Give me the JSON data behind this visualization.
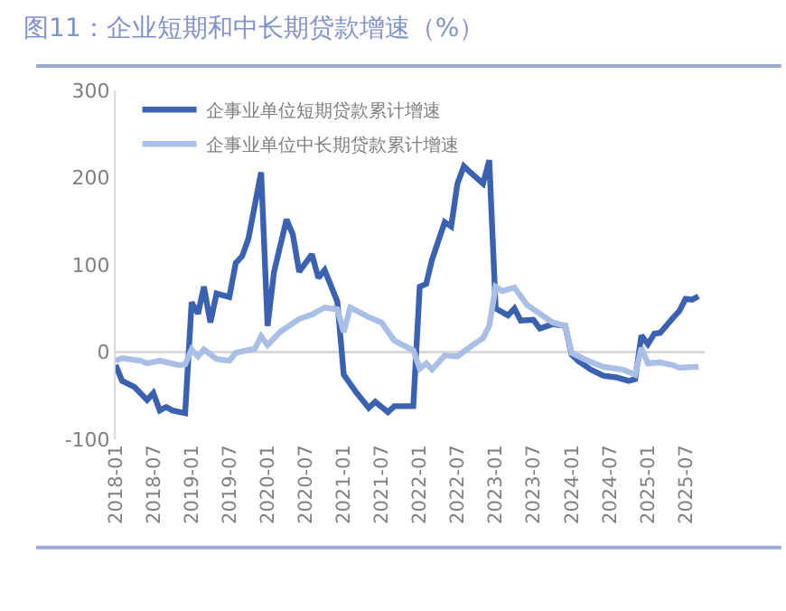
{
  "chart_data": {
    "type": "line",
    "title": "图11：企业短期和中长期贷款增速（%）",
    "ylim": [
      -100,
      300
    ],
    "yticks": [
      -100,
      0,
      100,
      200,
      300
    ],
    "xlim": [
      "2018-01",
      "2025-10"
    ],
    "xticks": [
      "2018-01",
      "2018-07",
      "2019-01",
      "2019-07",
      "2020-01",
      "2020-07",
      "2021-01",
      "2021-07",
      "2022-01",
      "2022-07",
      "2023-01",
      "2023-07",
      "2024-01",
      "2024-07",
      "2025-01",
      "2025-07"
    ],
    "grid": false,
    "ref_lines": [
      {
        "axis": "y",
        "value": 0,
        "color": "#d9d9d9"
      }
    ],
    "legend": "top left",
    "marker": "none",
    "line_style": "solid",
    "series": [
      {
        "name": "企事业单位短期贷款累计增速",
        "color": "#3a62b0",
        "x": [
          "2018-01",
          "2018-02",
          "2018-04",
          "2018-06",
          "2018-07",
          "2018-08",
          "2018-09",
          "2018-10",
          "2018-12",
          "2019-01",
          "2019-02",
          "2019-03",
          "2019-04",
          "2019-05",
          "2019-07",
          "2019-08",
          "2019-09",
          "2019-10",
          "2019-12",
          "2020-01",
          "2020-02",
          "2020-04",
          "2020-05",
          "2020-06",
          "2020-08",
          "2020-09",
          "2020-10",
          "2020-12",
          "2021-01",
          "2021-03",
          "2021-05",
          "2021-06",
          "2021-08",
          "2021-09",
          "2021-12",
          "2022-01",
          "2022-02",
          "2022-03",
          "2022-05",
          "2022-06",
          "2022-07",
          "2022-08",
          "2022-09",
          "2022-11",
          "2022-12",
          "2023-01",
          "2023-03",
          "2023-04",
          "2023-05",
          "2023-07",
          "2023-08",
          "2023-10",
          "2023-12",
          "2024-01",
          "2024-02",
          "2024-04",
          "2024-06",
          "2024-08",
          "2024-10",
          "2024-11",
          "2024-12",
          "2025-01",
          "2025-02",
          "2025-03",
          "2025-05",
          "2025-06",
          "2025-07",
          "2025-08",
          "2025-09"
        ],
        "values": [
          -15,
          -33,
          -40,
          -55,
          -47,
          -67,
          -63,
          -67,
          -70,
          57,
          44,
          75,
          34,
          67,
          63,
          102,
          110,
          130,
          206,
          30,
          92,
          152,
          135,
          92,
          112,
          85,
          94,
          58,
          -26,
          -46,
          -64,
          -57,
          -69,
          -62,
          -62,
          75,
          78,
          106,
          149,
          144,
          193,
          213,
          206,
          193,
          220,
          50,
          42,
          50,
          36,
          37,
          27,
          32,
          30,
          -3,
          -10,
          -20,
          -27,
          -29,
          -33,
          -31,
          19,
          9,
          21,
          22,
          39,
          47,
          61,
          60,
          64
        ]
      },
      {
        "name": "企事业单位中长期贷款累计增速",
        "color": "#a9bfe6",
        "x": [
          "2018-01",
          "2018-02",
          "2018-05",
          "2018-06",
          "2018-08",
          "2018-11",
          "2018-12",
          "2019-01",
          "2019-02",
          "2019-03",
          "2019-05",
          "2019-07",
          "2019-08",
          "2019-11",
          "2019-12",
          "2020-01",
          "2020-03",
          "2020-06",
          "2020-08",
          "2020-10",
          "2020-12",
          "2021-01",
          "2021-02",
          "2021-05",
          "2021-07",
          "2021-09",
          "2021-12",
          "2022-01",
          "2022-02",
          "2022-03",
          "2022-05",
          "2022-07",
          "2022-09",
          "2022-11",
          "2022-12",
          "2023-01",
          "2023-02",
          "2023-04",
          "2023-06",
          "2023-08",
          "2023-10",
          "2023-12",
          "2024-01",
          "2024-03",
          "2024-06",
          "2024-09",
          "2024-11",
          "2024-12",
          "2025-01",
          "2025-03",
          "2025-05",
          "2025-06",
          "2025-09"
        ],
        "values": [
          -10,
          -7,
          -10,
          -13,
          -10,
          -15,
          -14,
          3,
          -5,
          3,
          -8,
          -10,
          -1,
          4,
          18,
          8,
          23,
          38,
          43,
          51,
          49,
          23,
          51,
          40,
          34,
          13,
          2,
          -19,
          -13,
          -20,
          -4,
          -5,
          6,
          16,
          30,
          75,
          70,
          74,
          54,
          44,
          34,
          30,
          -1,
          -8,
          -17,
          -20,
          -26,
          5,
          -13,
          -12,
          -15,
          -18,
          -17
        ]
      }
    ]
  }
}
